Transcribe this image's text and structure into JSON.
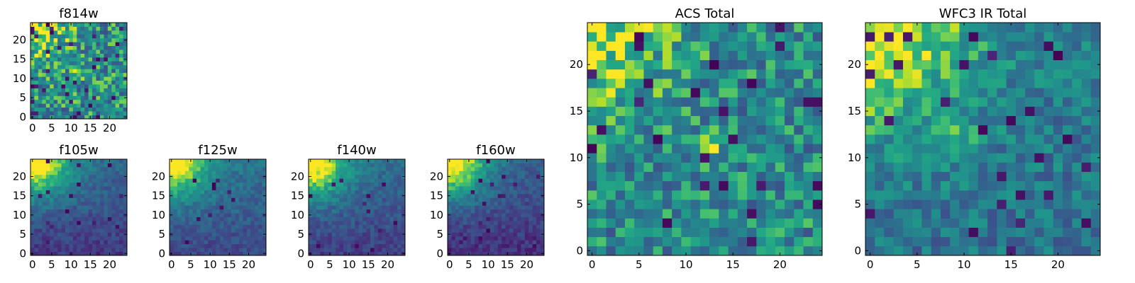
{
  "figure": {
    "background": "#ffffff",
    "colormap": "viridis"
  },
  "chart_data": [
    {
      "type": "heatmap",
      "title": "f814w",
      "grid_size": 25,
      "xlim": [
        0,
        24
      ],
      "ylim": [
        0,
        24
      ],
      "xticks": [
        0,
        5,
        10,
        15,
        20
      ],
      "yticks": [
        0,
        5,
        10,
        15,
        20
      ],
      "xtick_labels": [
        "0",
        "5",
        "10",
        "15",
        "20"
      ],
      "ytick_labels": [
        "0",
        "5",
        "10",
        "15",
        "20"
      ],
      "pattern": {
        "seed": 11,
        "bright_corner": "top-left",
        "corner_strength": 0.95,
        "corner_radius": 6,
        "noise": 0.3,
        "baseline": 0.6,
        "gradient": 0.0,
        "dark_fraction": 0.05,
        "hotspots": [
          [
            12,
            11,
            0.25
          ]
        ]
      }
    },
    {
      "type": "heatmap",
      "title": "f105w",
      "grid_size": 25,
      "xlim": [
        0,
        24
      ],
      "ylim": [
        0,
        24
      ],
      "xticks": [
        0,
        5,
        10,
        15,
        20
      ],
      "yticks": [
        0,
        5,
        10,
        15,
        20
      ],
      "xtick_labels": [
        "0",
        "5",
        "10",
        "15",
        "20"
      ],
      "ytick_labels": [
        "0",
        "5",
        "10",
        "15",
        "20"
      ],
      "pattern": {
        "seed": 21,
        "bright_corner": "top-left",
        "corner_strength": 1.0,
        "corner_radius": 7,
        "noise": 0.1,
        "baseline": 0.32,
        "gradient": 0.22,
        "dark_fraction": 0.02,
        "hotspots": []
      }
    },
    {
      "type": "heatmap",
      "title": "f125w",
      "grid_size": 25,
      "xlim": [
        0,
        24
      ],
      "ylim": [
        0,
        24
      ],
      "xticks": [
        0,
        5,
        10,
        15,
        20
      ],
      "yticks": [
        0,
        5,
        10,
        15,
        20
      ],
      "xtick_labels": [
        "0",
        "5",
        "10",
        "15",
        "20"
      ],
      "ytick_labels": [
        "0",
        "5",
        "10",
        "15",
        "20"
      ],
      "pattern": {
        "seed": 31,
        "bright_corner": "top-left",
        "corner_strength": 1.0,
        "corner_radius": 7,
        "noise": 0.1,
        "baseline": 0.38,
        "gradient": 0.2,
        "dark_fraction": 0.02,
        "hotspots": []
      }
    },
    {
      "type": "heatmap",
      "title": "f140w",
      "grid_size": 25,
      "xlim": [
        0,
        24
      ],
      "ylim": [
        0,
        24
      ],
      "xticks": [
        0,
        5,
        10,
        15,
        20
      ],
      "yticks": [
        0,
        5,
        10,
        15,
        20
      ],
      "xtick_labels": [
        "0",
        "5",
        "10",
        "15",
        "20"
      ],
      "ytick_labels": [
        "0",
        "5",
        "10",
        "15",
        "20"
      ],
      "pattern": {
        "seed": 41,
        "bright_corner": "top-left",
        "corner_strength": 1.0,
        "corner_radius": 7,
        "noise": 0.1,
        "baseline": 0.34,
        "gradient": 0.22,
        "dark_fraction": 0.02,
        "hotspots": []
      }
    },
    {
      "type": "heatmap",
      "title": "f160w",
      "grid_size": 25,
      "xlim": [
        0,
        24
      ],
      "ylim": [
        0,
        24
      ],
      "xticks": [
        0,
        5,
        10,
        15,
        20
      ],
      "yticks": [
        0,
        5,
        10,
        15,
        20
      ],
      "xtick_labels": [
        "0",
        "5",
        "10",
        "15",
        "20"
      ],
      "ytick_labels": [
        "0",
        "5",
        "10",
        "15",
        "20"
      ],
      "pattern": {
        "seed": 51,
        "bright_corner": "top-left",
        "corner_strength": 1.0,
        "corner_radius": 7,
        "noise": 0.1,
        "baseline": 0.28,
        "gradient": 0.22,
        "dark_fraction": 0.03,
        "hotspots": []
      }
    },
    {
      "type": "heatmap",
      "title": "ACS Total",
      "grid_size": 25,
      "xlim": [
        0,
        24
      ],
      "ylim": [
        0,
        24
      ],
      "xticks": [
        0,
        5,
        10,
        15,
        20
      ],
      "yticks": [
        0,
        5,
        10,
        15,
        20
      ],
      "xtick_labels": [
        "0",
        "5",
        "10",
        "15",
        "20"
      ],
      "ytick_labels": [
        "0",
        "5",
        "10",
        "15",
        "20"
      ],
      "pattern": {
        "seed": 61,
        "bright_corner": "top-left",
        "corner_strength": 0.95,
        "corner_radius": 6,
        "noise": 0.26,
        "baseline": 0.58,
        "gradient": 0.0,
        "dark_fraction": 0.05,
        "hotspots": [
          [
            12,
            11,
            0.3
          ]
        ]
      }
    },
    {
      "type": "heatmap",
      "title": "WFC3 IR Total",
      "grid_size": 25,
      "xlim": [
        0,
        24
      ],
      "ylim": [
        0,
        24
      ],
      "xticks": [
        0,
        5,
        10,
        15,
        20
      ],
      "yticks": [
        0,
        5,
        10,
        15,
        20
      ],
      "xtick_labels": [
        "0",
        "5",
        "10",
        "15",
        "20"
      ],
      "ytick_labels": [
        "0",
        "5",
        "10",
        "15",
        "20"
      ],
      "pattern": {
        "seed": 71,
        "bright_corner": "top-left",
        "corner_strength": 0.95,
        "corner_radius": 8,
        "noise": 0.18,
        "baseline": 0.5,
        "gradient": 0.05,
        "dark_fraction": 0.04,
        "hotspots": [
          [
            8,
            12,
            0.2
          ],
          [
            11,
            12,
            0.15
          ]
        ]
      }
    }
  ]
}
